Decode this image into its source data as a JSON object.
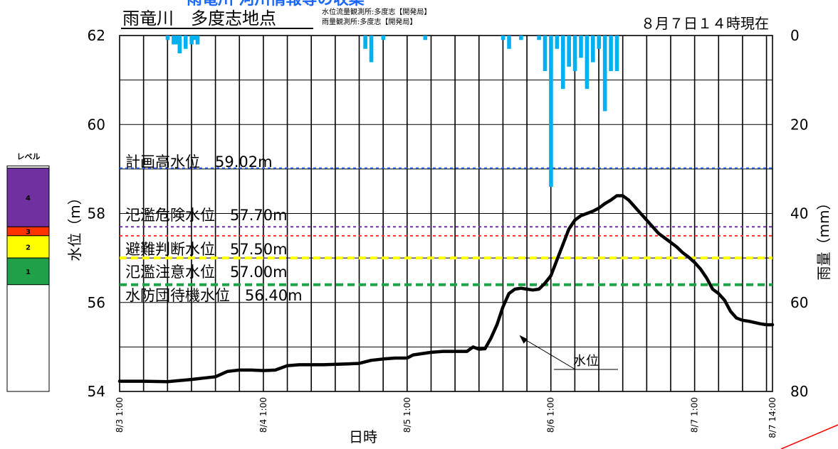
{
  "header": {
    "top_title": "雨竜川 河川情報等の収集",
    "station": "雨竜川　多度志地点",
    "obs_water": "水位流量観測所:多度志【開発局】",
    "obs_rain": "雨量観測所:多度志【開発局】",
    "as_of": "８月７日１４時現在"
  },
  "level_panel": {
    "title": "レベル",
    "levels": [
      {
        "label": "4",
        "color": "#7030A0",
        "from": 57.7,
        "to": 59.02
      },
      {
        "label": "3",
        "color": "#FF3300",
        "from": 57.5,
        "to": 57.7
      },
      {
        "label": "2",
        "color": "#FFFF00",
        "from": 57.0,
        "to": 57.5
      },
      {
        "label": "1",
        "color": "#1FA049",
        "from": 56.4,
        "to": 57.0
      }
    ]
  },
  "chart_data": {
    "type": "line",
    "xlabel": "日時",
    "ylabel": "水位（m）",
    "y2label": "雨量（mm）",
    "ylim": [
      54,
      62
    ],
    "y2lim": [
      80,
      0
    ],
    "yticks": [
      54,
      56,
      58,
      60,
      62
    ],
    "y2ticks": [
      0,
      20,
      40,
      60,
      80
    ],
    "xlim": [
      0,
      109
    ],
    "x_unit": "hours from 8/3 1:00",
    "xticks": [
      {
        "x": 0,
        "label": "8/3 1:00"
      },
      {
        "x": 24,
        "label": "8/4 1:00"
      },
      {
        "x": 48,
        "label": "8/5 1:00"
      },
      {
        "x": 72,
        "label": "8/6 1:00"
      },
      {
        "x": 96,
        "label": "8/7 1:00"
      },
      {
        "x": 109,
        "label": "8/7 14:00"
      }
    ],
    "thresholds": [
      {
        "label": "計画高水位　59.02m",
        "value": 59.02,
        "color": "#3366FF",
        "dash": "4,4",
        "width": 2
      },
      {
        "label": "氾濫危険水位　57.70m",
        "value": 57.7,
        "color": "#7030A0",
        "dash": "4,4",
        "width": 2
      },
      {
        "label": "避難判断水位　57.50m",
        "value": 57.5,
        "color": "#FF3333",
        "dash": "4,4",
        "width": 2
      },
      {
        "label": "氾濫注意水位　57.00m",
        "value": 57.0,
        "color": "#FFFF00",
        "dash": "10,6",
        "width": 4
      },
      {
        "label": "水防団待機水位　56.40m",
        "value": 56.4,
        "color": "#1FA049",
        "dash": "10,6",
        "width": 4
      }
    ],
    "series": [
      {
        "name": "水位",
        "color": "#000000",
        "x": [
          0,
          4,
          8,
          12,
          14,
          16,
          18,
          20,
          22,
          24,
          26,
          28,
          30,
          34,
          38,
          40,
          42,
          44,
          46,
          48,
          49,
          52,
          54,
          58,
          59,
          60,
          61,
          62,
          63,
          64,
          65,
          66,
          67,
          68,
          69,
          70,
          71,
          72,
          73,
          74,
          75,
          76,
          77,
          78,
          79,
          80,
          81,
          82,
          83,
          84,
          85,
          86,
          87,
          88,
          89,
          90,
          91,
          92,
          93,
          94,
          95,
          96,
          97,
          98,
          99,
          100,
          101,
          102,
          103,
          104,
          105,
          106,
          107,
          108,
          109
        ],
        "values": [
          54.23,
          54.23,
          54.22,
          54.27,
          54.3,
          54.33,
          54.45,
          54.48,
          54.48,
          54.47,
          54.48,
          54.58,
          54.6,
          54.6,
          54.62,
          54.63,
          54.7,
          54.73,
          54.75,
          54.75,
          54.82,
          54.88,
          54.9,
          54.9,
          55.0,
          54.95,
          54.96,
          55.2,
          55.5,
          55.9,
          56.2,
          56.3,
          56.32,
          56.3,
          56.28,
          56.3,
          56.43,
          56.6,
          56.95,
          57.3,
          57.65,
          57.85,
          57.95,
          58.0,
          58.05,
          58.12,
          58.22,
          58.3,
          58.4,
          58.4,
          58.3,
          58.15,
          58.0,
          57.85,
          57.7,
          57.55,
          57.45,
          57.35,
          57.25,
          57.12,
          57.02,
          56.9,
          56.75,
          56.55,
          56.3,
          56.2,
          56.05,
          55.8,
          55.65,
          55.6,
          55.58,
          55.55,
          55.52,
          55.5,
          55.5
        ]
      },
      {
        "name": "雨量",
        "type": "bar",
        "color": "#00B0F0",
        "x": [
          8,
          9,
          9.5,
          10,
          11,
          12,
          12.5,
          13,
          41,
          42,
          44,
          51,
          64,
          65,
          67,
          70,
          71,
          72,
          73,
          74,
          75,
          76,
          77,
          78,
          79,
          80,
          81,
          82,
          83
        ],
        "values": [
          1,
          2,
          2,
          4,
          3,
          2,
          1,
          2,
          3,
          6,
          1,
          1,
          1,
          3,
          1,
          1,
          8,
          34,
          3,
          12,
          7,
          8,
          5,
          12,
          6,
          3,
          17,
          8,
          8
        ]
      }
    ],
    "annotation": {
      "text": "水位",
      "x": 66.5,
      "y": 55.3
    }
  }
}
